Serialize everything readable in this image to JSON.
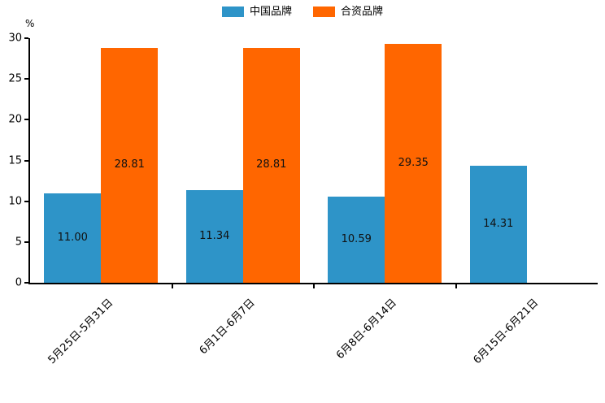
{
  "chart_data": {
    "type": "bar",
    "title": "",
    "unit_label": "%",
    "categories": [
      "5月25日-5月31日",
      "6月1日-6月7日",
      "6月8日-6月14日",
      "6月15日-6月21日"
    ],
    "series": [
      {
        "name": "中国品牌",
        "color": "#2E94C8",
        "values": [
          11.0,
          11.34,
          10.59,
          14.31
        ]
      },
      {
        "name": "合资品牌",
        "color": "#FF6600",
        "values": [
          28.81,
          28.81,
          29.35,
          null
        ]
      }
    ],
    "ylim": [
      0,
      30
    ],
    "yticks": [
      0,
      5,
      10,
      15,
      20,
      25,
      30
    ],
    "value_label_decimals": 2,
    "legend_position": "top",
    "grid": false
  }
}
